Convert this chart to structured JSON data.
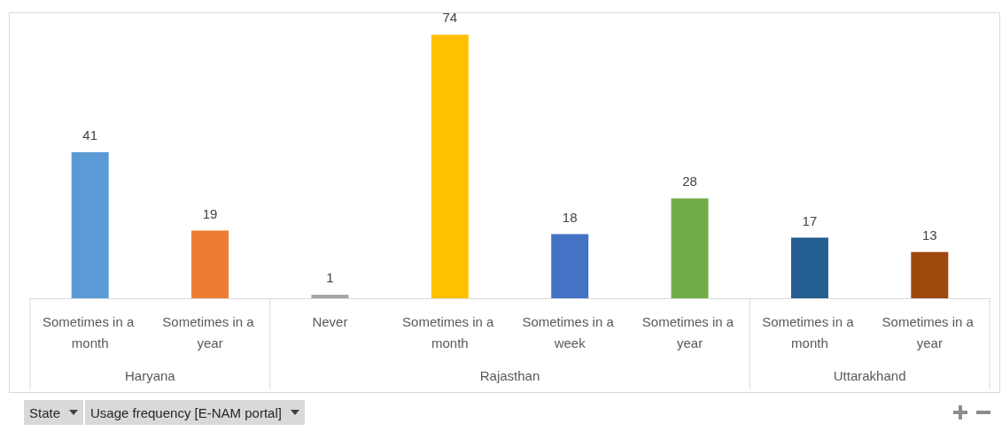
{
  "chart_data": {
    "type": "bar",
    "categories": [
      "Sometimes in a month",
      "Sometimes in a year",
      "Never",
      "Sometimes in a month",
      "Sometimes in a week",
      "Sometimes in a year",
      "Sometimes in a month",
      "Sometimes in a year"
    ],
    "values": [
      41,
      19,
      1,
      74,
      18,
      28,
      17,
      13
    ],
    "colors": [
      "#5b9bd5",
      "#ed7d31",
      "#a5a5a5",
      "#ffc000",
      "#4472c4",
      "#70ad47",
      "#255e91",
      "#9e480e"
    ],
    "data_labels": true,
    "annotations": [
      "Haryana",
      "Rajasthan",
      "Uttarakhand",
      "State",
      "Usage frequency [E-NAM portal]"
    ]
  }
}
